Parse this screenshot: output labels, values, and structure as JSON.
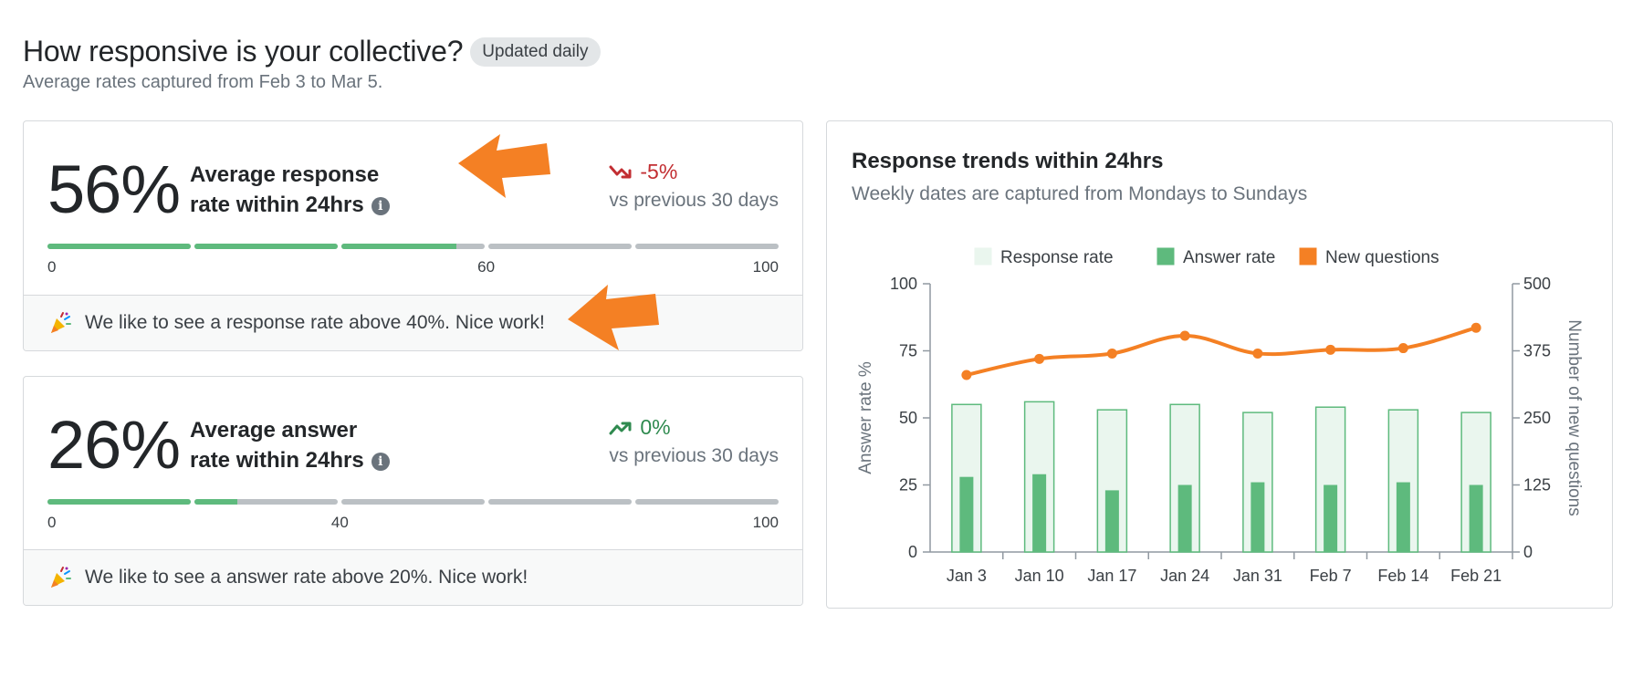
{
  "header": {
    "title": "How responsive is your collective?",
    "badge": "Updated daily",
    "subtitle": "Average rates captured from Feb 3 to Mar 5."
  },
  "response_card": {
    "percent": "56%",
    "label_line1": "Average response",
    "label_line2": "rate within 24hrs",
    "info_icon": "info-icon",
    "delta": "-5%",
    "delta_direction": "down",
    "compare": "vs previous 30 days",
    "progress_value": 56,
    "tick_labels": [
      "0",
      "60",
      "100"
    ],
    "tick_values": [
      0,
      60,
      100
    ],
    "footer": "We like to see a response rate above 40%. Nice work!"
  },
  "answer_card": {
    "percent": "26%",
    "label_line1": "Average answer",
    "label_line2": "rate within 24hrs",
    "info_icon": "info-icon",
    "delta": "0%",
    "delta_direction": "up",
    "compare": "vs previous 30 days",
    "progress_value": 26,
    "tick_labels": [
      "0",
      "40",
      "100"
    ],
    "tick_values": [
      0,
      40,
      100
    ],
    "footer": "We like to see a answer rate above 20%. Nice work!"
  },
  "colors": {
    "green": "#5eba7d",
    "light_green": "#eaf6ee",
    "orange": "#f48024",
    "red": "#c22e32",
    "gray_track": "#bbc0c4",
    "annotation_arrow": "#f48024"
  },
  "chart_data": {
    "type": "bar",
    "title": "Response trends within 24hrs",
    "subtitle": "Weekly dates are captured from Mondays to Sundays",
    "categories": [
      "Jan 3",
      "Jan 10",
      "Jan 17",
      "Jan 24",
      "Jan 31",
      "Feb 7",
      "Feb 14",
      "Feb 21"
    ],
    "series": [
      {
        "name": "Response rate",
        "kind": "bar",
        "axis": "left",
        "values": [
          55,
          56,
          53,
          55,
          52,
          54,
          53,
          52
        ]
      },
      {
        "name": "Answer rate",
        "kind": "bar",
        "axis": "left",
        "values": [
          28,
          29,
          23,
          25,
          26,
          25,
          26,
          25
        ]
      },
      {
        "name": "New questions",
        "kind": "line",
        "axis": "right",
        "values": [
          330,
          360,
          370,
          403,
          370,
          377,
          380,
          418
        ]
      }
    ],
    "ylabel": "Answer rate %",
    "ylabel_right": "Number of new questions",
    "ylim": [
      0,
      100
    ],
    "ylim_right": [
      0,
      500
    ],
    "yticks": [
      "0",
      "25",
      "50",
      "75",
      "100"
    ],
    "yticks_right": [
      "0",
      "125",
      "250",
      "375",
      "500"
    ],
    "legend": "top"
  }
}
